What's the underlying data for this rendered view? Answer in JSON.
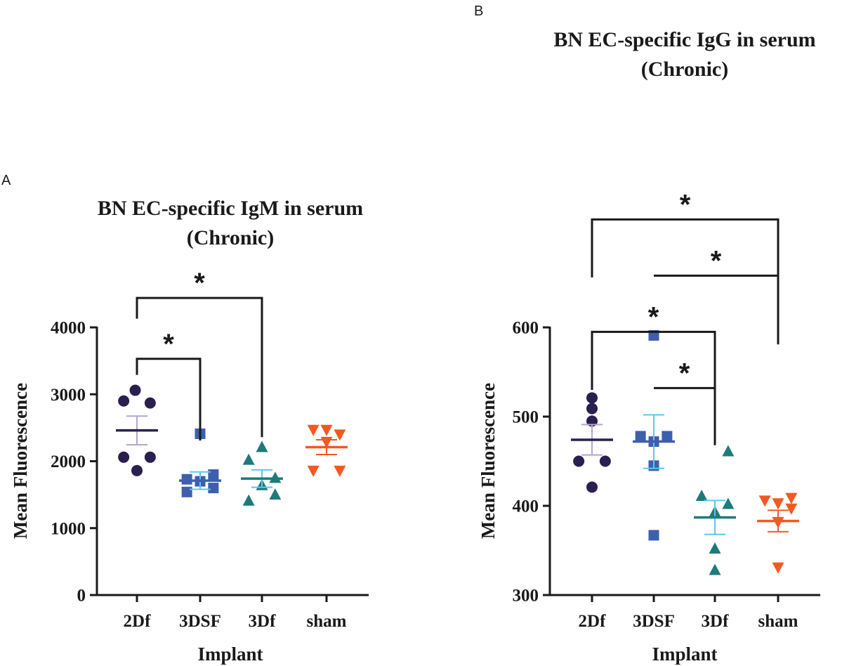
{
  "chart_data": [
    {
      "panel": "A",
      "type": "scatter",
      "title_lines": [
        "BN EC-specific IgM in serum",
        "(Chronic)"
      ],
      "xlabel": "Implant",
      "ylabel": "Mean Fluorescence",
      "ylim": [
        0,
        4000
      ],
      "yticks": [
        0,
        1000,
        2000,
        3000,
        4000
      ],
      "categories": [
        "2Df",
        "3DSF",
        "3Df",
        "sham"
      ],
      "series": [
        {
          "name": "2Df",
          "marker": "circle",
          "color": "#2a1f4f",
          "err_color": "#b3a6cc",
          "points": [
            [
              -0.03,
              3060
            ],
            [
              -0.23,
              2900
            ],
            [
              0.23,
              2870
            ],
            [
              -0.23,
              2060
            ],
            [
              0.23,
              2060
            ],
            [
              0.0,
              1860
            ]
          ],
          "mean": 2460,
          "sem": 215
        },
        {
          "name": "3DSF",
          "marker": "square",
          "color": "#3d5fae",
          "err_color": "#5bc8ea",
          "points": [
            [
              0.0,
              2410
            ],
            [
              -0.23,
              1730
            ],
            [
              0.0,
              1700
            ],
            [
              0.23,
              1800
            ],
            [
              0.23,
              1600
            ],
            [
              -0.23,
              1540
            ]
          ],
          "mean": 1710,
          "sem": 130
        },
        {
          "name": "3Df",
          "marker": "triangle-up",
          "color": "#1f7a7a",
          "err_color": "#5bc8ea",
          "points": [
            [
              0.0,
              2210
            ],
            [
              -0.23,
              2020
            ],
            [
              0.23,
              1750
            ],
            [
              -0.23,
              1410
            ],
            [
              0.23,
              1500
            ],
            [
              0.0,
              1640
            ]
          ],
          "mean": 1740,
          "sem": 130
        },
        {
          "name": "sham",
          "marker": "triangle-down",
          "color": "#f05a22",
          "err_color": "#f05a22",
          "points": [
            [
              -0.23,
              2470
            ],
            [
              0.0,
              2470
            ],
            [
              0.23,
              2400
            ],
            [
              0.0,
              2290
            ],
            [
              -0.23,
              1860
            ],
            [
              0.23,
              1860
            ]
          ],
          "mean": 2210,
          "sem": 110
        }
      ],
      "brackets": [
        {
          "from": 0,
          "to": 1,
          "level": 3530,
          "left_drop": 3290,
          "right_drop": 2310,
          "label": "*"
        },
        {
          "from": 0,
          "to": 2,
          "level": 4440,
          "left_drop": 4130,
          "right_drop": 2360,
          "label": "*"
        }
      ]
    },
    {
      "panel": "B",
      "type": "scatter",
      "title_lines": [
        "BN EC-specific IgG in serum",
        "(Chronic)"
      ],
      "xlabel": "Implant",
      "ylabel": "Mean Fluorescence",
      "ylim": [
        300,
        600
      ],
      "yticks": [
        300,
        400,
        500,
        600
      ],
      "categories": [
        "2Df",
        "3DSF",
        "3Df",
        "sham"
      ],
      "series": [
        {
          "name": "2Df",
          "marker": "circle",
          "color": "#2a1f4f",
          "err_color": "#b3a6cc",
          "points": [
            [
              0.0,
              521
            ],
            [
              0.0,
              509
            ],
            [
              0.0,
              495
            ],
            [
              -0.23,
              450
            ],
            [
              0.23,
              450
            ],
            [
              0.0,
              421
            ]
          ],
          "mean": 474,
          "sem": 17
        },
        {
          "name": "3DSF",
          "marker": "square",
          "color": "#3d5fae",
          "err_color": "#5bc8ea",
          "points": [
            [
              0.0,
              591
            ],
            [
              -0.23,
              478
            ],
            [
              0.0,
              472
            ],
            [
              0.23,
              478
            ],
            [
              0.0,
              445
            ],
            [
              0.0,
              367
            ]
          ],
          "mean": 472,
          "sem": 30
        },
        {
          "name": "3Df",
          "marker": "triangle-up",
          "color": "#1f7a7a",
          "err_color": "#5bc8ea",
          "points": [
            [
              0.23,
              461
            ],
            [
              -0.23,
              411
            ],
            [
              0.23,
              402
            ],
            [
              0.0,
              393
            ],
            [
              0.0,
              352
            ],
            [
              0.0,
              328
            ]
          ],
          "mean": 387,
          "sem": 19
        },
        {
          "name": "sham",
          "marker": "triangle-down",
          "color": "#f05a22",
          "err_color": "#f05a22",
          "points": [
            [
              -0.23,
              406
            ],
            [
              0.0,
              403
            ],
            [
              0.23,
              409
            ],
            [
              0.23,
              397
            ],
            [
              0.0,
              382
            ],
            [
              0.0,
              331
            ]
          ],
          "mean": 383,
          "sem": 12
        }
      ],
      "brackets": [
        {
          "from": 1,
          "to": 2,
          "level": 532,
          "left_drop": 532,
          "right_drop": 468,
          "label": "*"
        },
        {
          "from": 0,
          "to": 2,
          "level": 595,
          "left_drop": 530,
          "right_drop": 468,
          "label": "*"
        },
        {
          "from": 1,
          "to": 3,
          "level": 658,
          "left_drop": 658,
          "right_drop": 581,
          "label": "*"
        },
        {
          "from": 0,
          "to": 3,
          "level": 721,
          "left_drop": 656,
          "right_drop": 581,
          "label": "*"
        }
      ]
    }
  ]
}
